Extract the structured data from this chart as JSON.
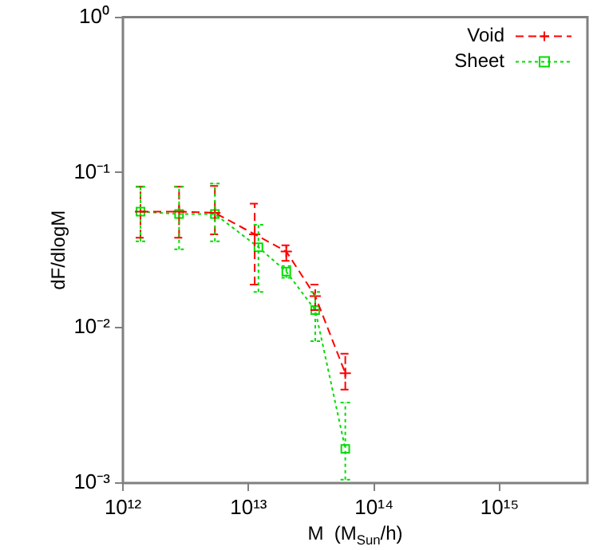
{
  "chart_data": {
    "type": "line",
    "xlabel": "M  (M$_{Sun}$/h)",
    "ylabel": "dF/dlogM",
    "log": "xy",
    "grid": false,
    "legend": "top right",
    "xlim": [
      1000000000000.0,
      5000000000000000.0
    ],
    "ylim": [
      0.001,
      1
    ],
    "xticks": [
      {
        "value": 1000000000000.0,
        "label": "10¹²"
      },
      {
        "value": 10000000000000.0,
        "label": "10¹³"
      },
      {
        "value": 100000000000000.0,
        "label": "10¹⁴"
      },
      {
        "value": 1000000000000000.0,
        "label": "10¹⁵"
      }
    ],
    "yticks": [
      {
        "value": 0.001,
        "label": "10⁻³"
      },
      {
        "value": 0.01,
        "label": "10⁻²"
      },
      {
        "value": 0.1,
        "label": "10⁻¹"
      },
      {
        "value": 1,
        "label": "10⁰"
      }
    ],
    "series": [
      {
        "name": "Void",
        "color": "#ff0000",
        "marker": "cross",
        "line_style": "dashed",
        "x": [
          1380000000000.0,
          2800000000000.0,
          5400000000000.0,
          11200000000000.0,
          20000000000000.0,
          34000000000000.0,
          59000000000000.0
        ],
        "values": [
          0.056,
          0.056,
          0.055,
          0.04,
          0.031,
          0.016,
          0.0051
        ],
        "errors": [
          [
            0.038,
            0.081
          ],
          [
            0.038,
            0.081
          ],
          [
            0.04,
            0.082
          ],
          [
            0.019,
            0.063
          ],
          [
            0.027,
            0.034
          ],
          [
            0.013,
            0.019
          ],
          [
            0.004,
            0.0068
          ]
        ]
      },
      {
        "name": "Sheet",
        "color": "#00dd00",
        "marker": "square",
        "line_style": "dotted",
        "x": [
          1380000000000.0,
          2800000000000.0,
          5400000000000.0,
          12000000000000.0,
          20000000000000.0,
          34000000000000.0,
          59000000000000.0
        ],
        "values": [
          0.056,
          0.054,
          0.054,
          0.033,
          0.023,
          0.013,
          0.00166
        ],
        "errors": [
          [
            0.036,
            0.081
          ],
          [
            0.032,
            0.081
          ],
          [
            0.036,
            0.085
          ],
          [
            0.017,
            0.046
          ],
          [
            0.021,
            0.025
          ],
          [
            0.0082,
            0.017
          ],
          [
            0.00105,
            0.0033
          ]
        ]
      }
    ]
  }
}
